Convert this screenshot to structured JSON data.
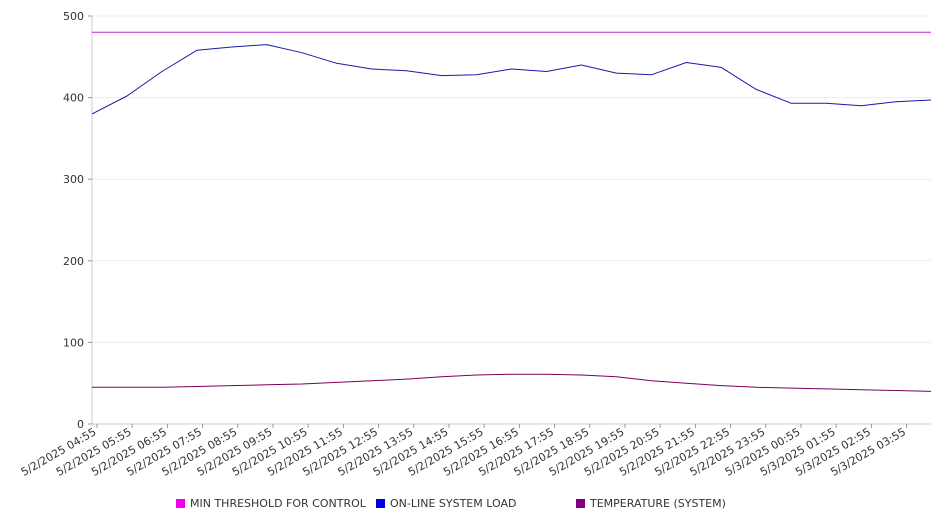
{
  "chart_data": {
    "type": "line",
    "x_tick_labels": [
      "5/2/2025 04:55",
      "5/2/2025 05:55",
      "5/2/2025 06:55",
      "5/2/2025 07:55",
      "5/2/2025 08:55",
      "5/2/2025 09:55",
      "5/2/2025 10:55",
      "5/2/2025 11:55",
      "5/2/2025 12:55",
      "5/2/2025 13:55",
      "5/2/2025 14:55",
      "5/2/2025 15:55",
      "5/2/2025 16:55",
      "5/2/2025 17:55",
      "5/2/2025 18:55",
      "5/2/2025 19:55",
      "5/2/2025 20:55",
      "5/2/2025 21:55",
      "5/2/2025 22:55",
      "5/2/2025 23:55",
      "5/3/2025 00:55",
      "5/3/2025 01:55",
      "5/3/2025 02:55",
      "5/3/2025 03:55"
    ],
    "y_ticks": [
      0,
      100,
      200,
      300,
      400,
      500
    ],
    "ylim": [
      0,
      500
    ],
    "grid": true,
    "legend_position": "bottom",
    "series": [
      {
        "name": "MIN THRESHOLD FOR CONTROL",
        "color": "#bb22cc",
        "legend_color": "#ee00ee",
        "values": [
          480,
          480,
          480,
          480,
          480,
          480,
          480,
          480,
          480,
          480,
          480,
          480,
          480,
          480,
          480,
          480,
          480,
          480,
          480,
          480,
          480,
          480,
          480,
          480,
          480
        ]
      },
      {
        "name": "ON-LINE SYSTEM LOAD",
        "color": "#1a1aaa",
        "legend_color": "#0000dd",
        "values": [
          380,
          402,
          432,
          458,
          462,
          465,
          455,
          442,
          435,
          433,
          427,
          428,
          435,
          432,
          440,
          430,
          428,
          443,
          437,
          410,
          393,
          393,
          390,
          395,
          397
        ]
      },
      {
        "name": "TEMPERATURE (SYSTEM)",
        "color": "#7a0060",
        "legend_color": "#800080",
        "values": [
          45,
          45,
          45,
          46,
          47,
          48,
          49,
          51,
          53,
          55,
          58,
          60,
          61,
          61,
          60,
          58,
          53,
          50,
          47,
          45,
          44,
          43,
          42,
          41,
          40
        ]
      }
    ]
  }
}
